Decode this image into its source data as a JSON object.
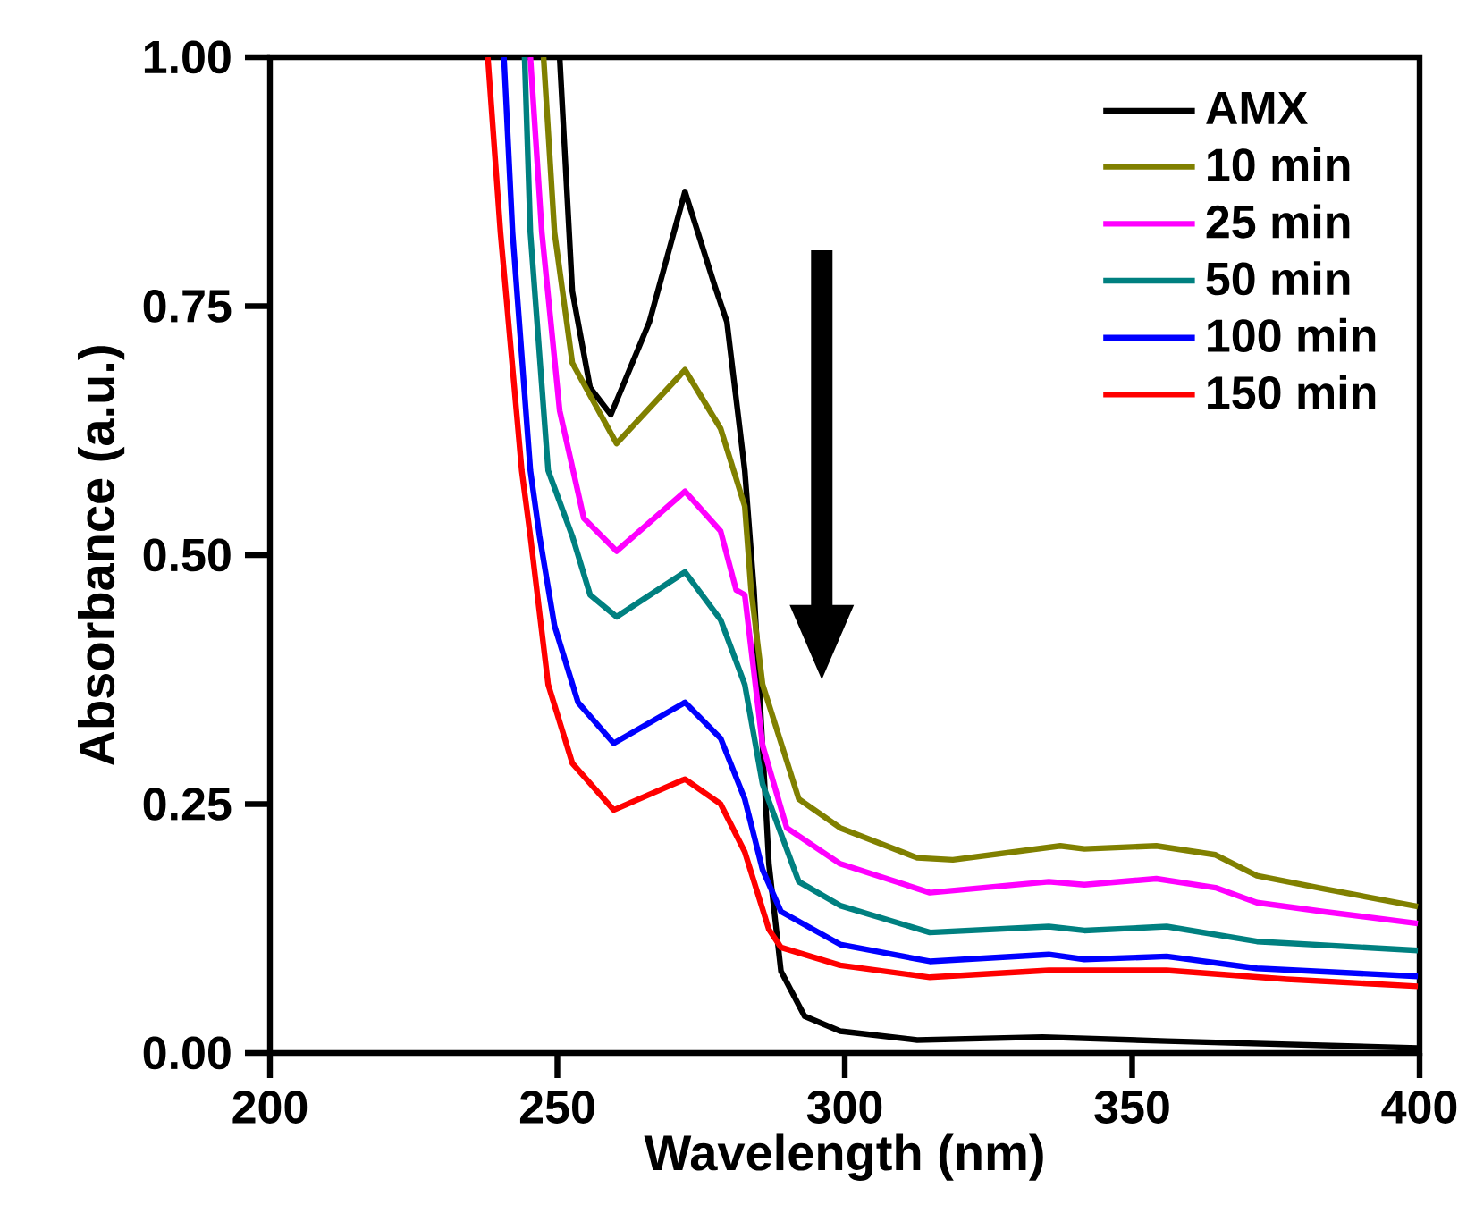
{
  "chart_data": {
    "type": "line",
    "xlabel": "Wavelength (nm)",
    "ylabel": "Absorbance (a.u.)",
    "xlim": [
      200,
      400
    ],
    "ylim": [
      0,
      1
    ],
    "xticks": [
      200,
      250,
      300,
      350,
      400
    ],
    "yticks": [
      {
        "value": 0,
        "label": "0.00"
      },
      {
        "value": 0.25,
        "label": "0.25"
      },
      {
        "value": 0.5,
        "label": "0.50"
      },
      {
        "value": 0.75,
        "label": "0.75"
      },
      {
        "value": 1,
        "label": "1.00"
      }
    ],
    "legend": "top right",
    "grid": false,
    "marker": "none",
    "line_style": "solid",
    "series": [
      {
        "name": "AMX",
        "color": "#000000",
        "x": [
          250.4,
          252.6,
          255.7,
          259.3,
          266.0,
          272.2,
          277.4,
          279.5,
          282.6,
          284.2,
          286.8,
          288.9,
          293.0,
          299.2,
          312.6,
          334.4,
          356.0,
          399.7
        ],
        "values": [
          1.0,
          0.765,
          0.668,
          0.641,
          0.734,
          0.865,
          0.77,
          0.734,
          0.585,
          0.465,
          0.19,
          0.082,
          0.037,
          0.022,
          0.013,
          0.016,
          0.012,
          0.005
        ]
      },
      {
        "name": "10 min",
        "color": "#808000",
        "x": [
          247.6,
          249.5,
          252.6,
          260.3,
          272.2,
          278.4,
          282.6,
          283.7,
          285.7,
          292.0,
          299.2,
          312.6,
          318.8,
          337.5,
          341.7,
          354.2,
          364.5,
          371.7,
          383.2,
          399.7
        ],
        "values": [
          1.0,
          0.824,
          0.693,
          0.612,
          0.686,
          0.627,
          0.549,
          0.465,
          0.37,
          0.255,
          0.226,
          0.196,
          0.194,
          0.208,
          0.205,
          0.208,
          0.199,
          0.178,
          0.165,
          0.147
        ]
      },
      {
        "name": "25 min",
        "color": "#ff00ff",
        "x": [
          245.3,
          247.3,
          250.4,
          254.6,
          260.3,
          272.2,
          278.4,
          281.1,
          282.6,
          285.7,
          289.9,
          299.2,
          314.8,
          335.5,
          341.7,
          354.2,
          364.5,
          371.7,
          383.2,
          399.7
        ],
        "values": [
          1.0,
          0.824,
          0.645,
          0.537,
          0.504,
          0.564,
          0.524,
          0.465,
          0.46,
          0.309,
          0.226,
          0.19,
          0.161,
          0.172,
          0.169,
          0.175,
          0.166,
          0.151,
          0.142,
          0.13
        ]
      },
      {
        "name": "50 min",
        "color": "#008080",
        "x": [
          244.3,
          245.3,
          248.4,
          252.6,
          255.7,
          260.3,
          272.2,
          278.4,
          282.6,
          285.7,
          292.0,
          299.2,
          314.8,
          335.5,
          341.7,
          356.0,
          371.7,
          399.7
        ],
        "values": [
          1.0,
          0.824,
          0.585,
          0.519,
          0.46,
          0.438,
          0.483,
          0.435,
          0.37,
          0.27,
          0.172,
          0.148,
          0.121,
          0.127,
          0.123,
          0.127,
          0.112,
          0.103
        ]
      },
      {
        "name": "100 min",
        "color": "#0000ff",
        "x": [
          240.7,
          242.2,
          245.3,
          246.9,
          249.5,
          253.6,
          259.8,
          272.2,
          278.4,
          282.6,
          285.7,
          288.9,
          299.2,
          314.8,
          335.5,
          341.7,
          356.0,
          371.7,
          399.7
        ],
        "values": [
          1.0,
          0.824,
          0.585,
          0.519,
          0.429,
          0.352,
          0.311,
          0.352,
          0.316,
          0.255,
          0.184,
          0.142,
          0.109,
          0.092,
          0.099,
          0.094,
          0.097,
          0.085,
          0.077
        ]
      },
      {
        "name": "150 min",
        "color": "#ff0000",
        "x": [
          237.9,
          240.1,
          243.8,
          245.3,
          248.4,
          252.6,
          259.8,
          272.2,
          278.4,
          282.6,
          286.8,
          288.9,
          299.2,
          314.8,
          335.5,
          356.0,
          376.9,
          399.7
        ],
        "values": [
          1.0,
          0.824,
          0.585,
          0.519,
          0.37,
          0.291,
          0.244,
          0.275,
          0.25,
          0.202,
          0.124,
          0.106,
          0.088,
          0.076,
          0.083,
          0.083,
          0.074,
          0.067
        ]
      }
    ]
  }
}
